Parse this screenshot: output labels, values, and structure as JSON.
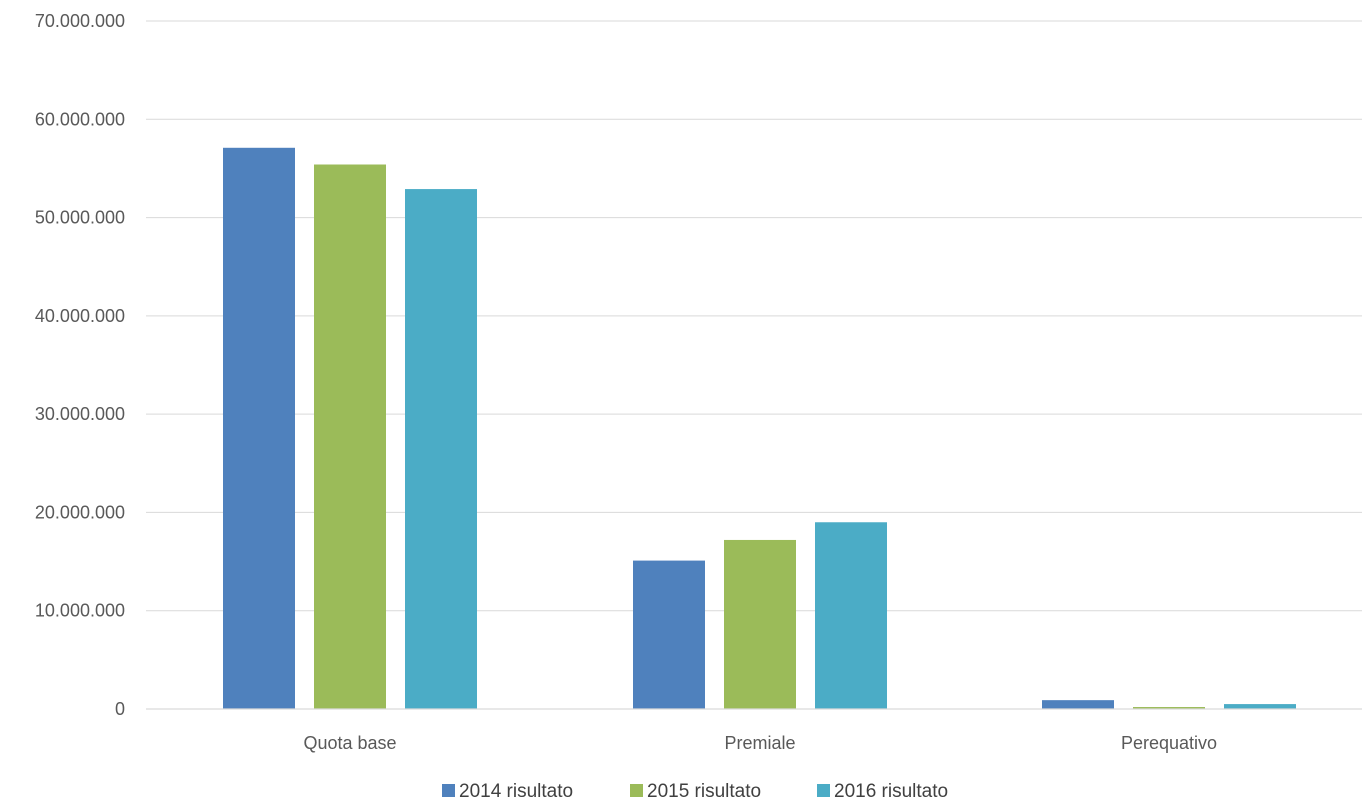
{
  "chart_data": {
    "type": "bar",
    "title": "",
    "xlabel": "",
    "ylabel": "",
    "categories": [
      "Quota base",
      "Premiale",
      "Perequativo"
    ],
    "series": [
      {
        "name": "2014 risultato",
        "values": [
          57100000,
          15100000,
          900000
        ],
        "color": "#4f81bd"
      },
      {
        "name": "2015 risultato",
        "values": [
          55400000,
          17200000,
          200000
        ],
        "color": "#9bbb59"
      },
      {
        "name": "2016 risultato",
        "values": [
          52900000,
          19000000,
          500000
        ],
        "color": "#4bacc6"
      }
    ],
    "ylim": [
      0,
      70000000
    ],
    "yticks": [
      0,
      10000000,
      20000000,
      30000000,
      40000000,
      50000000,
      60000000,
      70000000
    ],
    "ytick_labels": [
      "0",
      "10.000.000",
      "20.000.000",
      "30.000.000",
      "40.000.000",
      "50.000.000",
      "60.000.000",
      "70.000.000"
    ],
    "grid": true,
    "gridline_color": "#d9d9d9",
    "legend_position": "bottom"
  }
}
